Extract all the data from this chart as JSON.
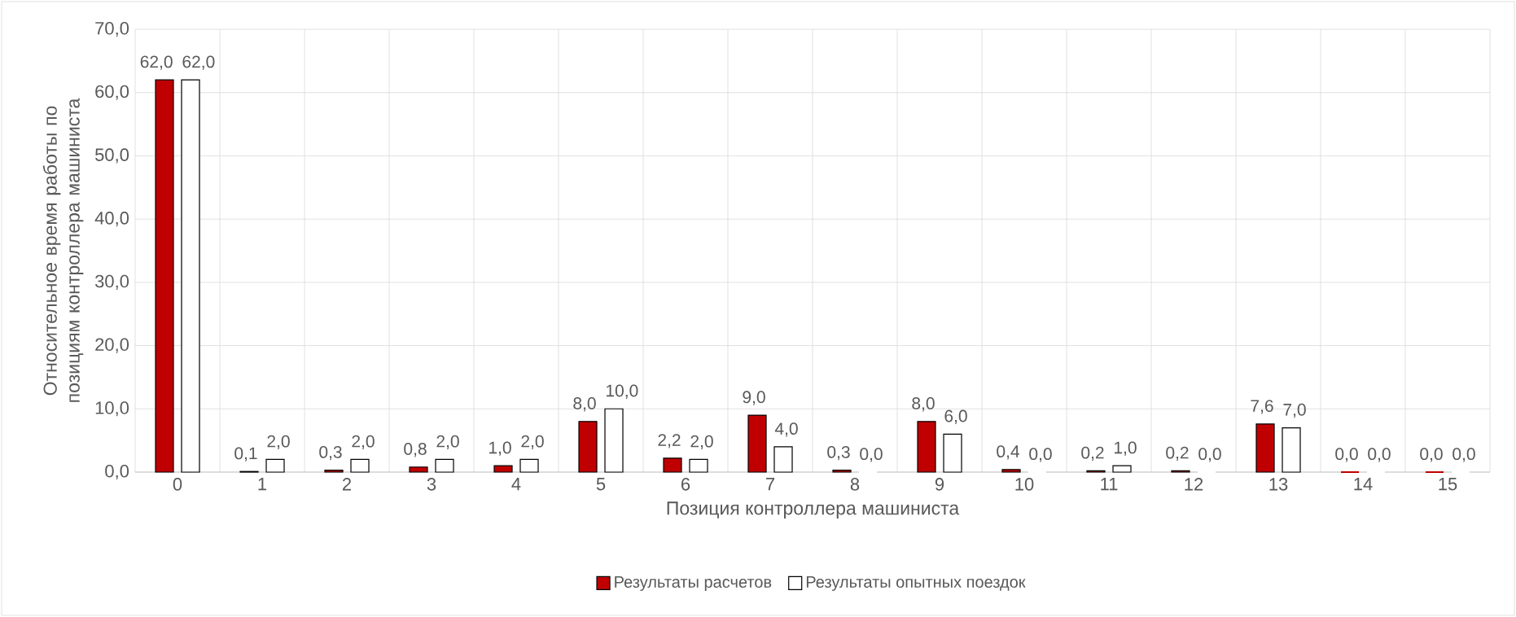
{
  "chart_data": {
    "type": "bar",
    "xlabel": "Позиция контроллера машиниста",
    "ylabel": "Относительное время работы по позициям контроллера машиниста",
    "categories": [
      "0",
      "1",
      "2",
      "3",
      "4",
      "5",
      "6",
      "7",
      "8",
      "9",
      "10",
      "11",
      "12",
      "13",
      "14",
      "15"
    ],
    "series": [
      {
        "name": "Результаты расчетов",
        "color": "#c00000",
        "values": [
          62,
          0.1,
          0.3,
          0.8,
          1,
          8,
          2.2,
          9,
          0.3,
          8,
          0.4,
          0.2,
          0.2,
          7.6,
          0,
          0
        ],
        "value_labels": [
          "62,0",
          "0,1",
          "0,3",
          "0,8",
          "1,0",
          "8,0",
          "2,2",
          "9,0",
          "0,3",
          "8,0",
          "0,4",
          "0,2",
          "0,2",
          "7,6",
          "0,0",
          "0,0"
        ]
      },
      {
        "name": "Результаты опытных поездок",
        "color": "#ffffff",
        "values": [
          62,
          2,
          2,
          2,
          2,
          10,
          2,
          4,
          0,
          6,
          0,
          1,
          0,
          7,
          0,
          0
        ],
        "value_labels": [
          "62,0",
          "2,0",
          "2,0",
          "2,0",
          "2,0",
          "10,0",
          "2,0",
          "4,0",
          "0,0",
          "6,0",
          "0,0",
          "1,0",
          "0,0",
          "7,0",
          "0,0",
          "0,0"
        ]
      }
    ],
    "ylim": [
      0,
      70
    ],
    "yticks": [
      {
        "value": 0,
        "label": "0,0"
      },
      {
        "value": 10,
        "label": "10,0"
      },
      {
        "value": 20,
        "label": "20,0"
      },
      {
        "value": 30,
        "label": "30,0"
      },
      {
        "value": 40,
        "label": "40,0"
      },
      {
        "value": 50,
        "label": "50,0"
      },
      {
        "value": 60,
        "label": "60,0"
      },
      {
        "value": 70,
        "label": "70,0"
      }
    ],
    "grid": true,
    "legend": "bottom"
  }
}
